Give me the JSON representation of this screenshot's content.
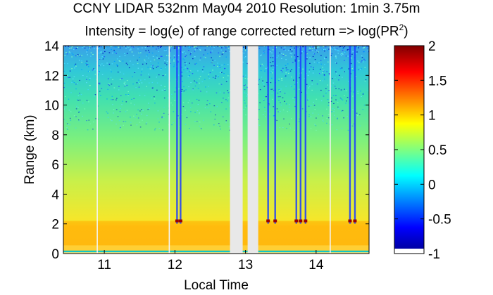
{
  "chart_data": {
    "type": "heatmap",
    "title": "CCNY LIDAR 532nm May04 2010 Resolution: 1min 3.75m",
    "subtitle_main": "Intensity = log(e) of range corrected return => log(PR",
    "subtitle_sup": "2",
    "subtitle_end": ")",
    "xlabel": "Local Time",
    "ylabel": "Range (km)",
    "xlim": [
      10.42,
      14.75
    ],
    "ylim": [
      0,
      14
    ],
    "xticks": [
      "11",
      "12",
      "13",
      "14"
    ],
    "yticks": [
      "0",
      "2",
      "4",
      "6",
      "8",
      "10",
      "12",
      "14"
    ],
    "colorbar": {
      "range": [
        -1,
        2
      ],
      "ticks": [
        "-1",
        "-0.5",
        "0",
        "0.5",
        "1",
        "1.5",
        "2"
      ],
      "colormap": "jet"
    },
    "data_gaps_hours": [
      [
        12.78,
        12.96
      ],
      [
        13.03,
        13.18
      ]
    ],
    "thin_gaps_hours": [
      10.9,
      11.92,
      14.2
    ],
    "cloud_columns_hours": [
      12.03,
      12.08,
      13.32,
      13.42,
      13.72,
      13.78,
      13.85,
      14.48,
      14.55
    ],
    "boundary_layer_top_km": 2.2,
    "colors": {
      "gap": "#e8e8e8",
      "cloud_base": "#9a0000"
    }
  }
}
